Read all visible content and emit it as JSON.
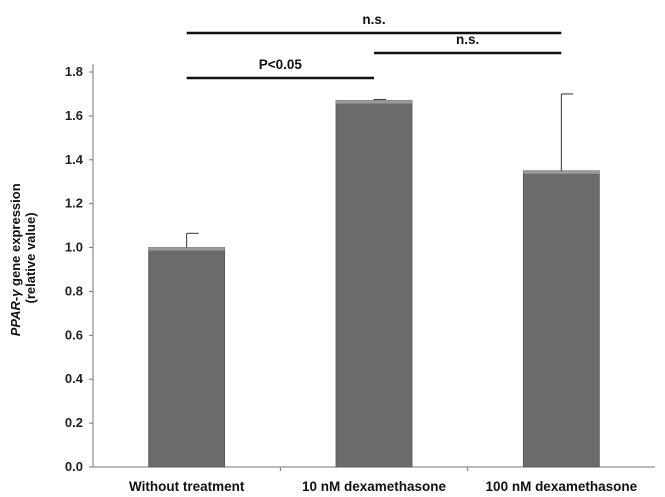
{
  "chart_data": {
    "type": "bar",
    "categories": [
      "Without treatment",
      "10 nM dexamethasone",
      "100 nM dexamethasone"
    ],
    "values": [
      1.0,
      1.67,
      1.35
    ],
    "errors": [
      0.065,
      0.005,
      0.35
    ],
    "ylim": [
      0,
      1.8
    ],
    "yticks": [
      "0.0",
      "0.2",
      "0.4",
      "0.6",
      "0.8",
      "1.0",
      "1.2",
      "1.4",
      "1.6",
      "1.8"
    ],
    "ylabel_prefix": "PPAR-γ",
    "ylabel_line1_rest": " gene expression",
    "ylabel_line2": "(relative value)",
    "xlabel": "",
    "title": "",
    "grid": false,
    "bar_color": "#6b6b6b",
    "significance": [
      {
        "from": 0,
        "to": 1,
        "label": "P<0.05"
      },
      {
        "from": 1,
        "to": 2,
        "label": "n.s."
      },
      {
        "from": 0,
        "to": 2,
        "label": "n.s."
      }
    ]
  }
}
